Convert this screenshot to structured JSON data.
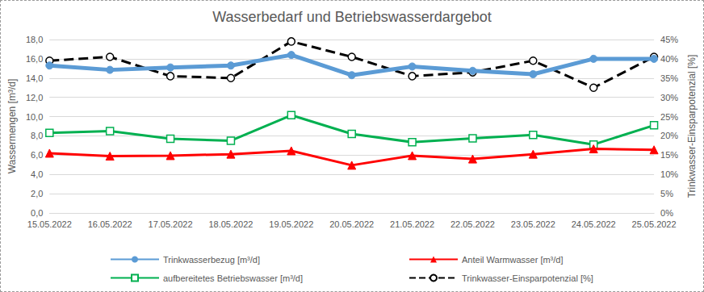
{
  "chart_data": {
    "type": "line",
    "title": "Wasserbedarf und Betriebswasserdargebot",
    "y_label": "Wassermengen [m³/d]",
    "y2_label": "Trinkwasser-Einsparpotenzial [%]",
    "categories": [
      "15.05.2022",
      "16.05.2022",
      "17.05.2022",
      "18.05.2022",
      "19.05.2022",
      "20.05.2022",
      "21.05.2022",
      "22.05.2022",
      "23.05.2022",
      "24.05.2022",
      "25.05.2022"
    ],
    "series": [
      {
        "name": "Trinkwasserbezug [m³/d]",
        "color": "#5b9bd5",
        "marker": "circle",
        "line_style": "solid",
        "values": [
          15.3,
          14.85,
          15.1,
          15.3,
          16.4,
          14.3,
          15.2,
          14.75,
          14.4,
          16.0,
          16.0
        ]
      },
      {
        "name": "Anteil Warmwasser [m³/d]",
        "color": "#ff0000",
        "marker": "triangle",
        "line_style": "solid",
        "values": [
          6.2,
          5.9,
          5.95,
          6.1,
          6.45,
          4.95,
          5.95,
          5.6,
          6.1,
          6.65,
          6.55
        ]
      },
      {
        "name": "aufbereitetes Betriebswasser [m³/d]",
        "color": "#00b050",
        "marker": "square-open",
        "line_style": "solid",
        "values": [
          8.3,
          8.5,
          7.7,
          7.5,
          10.15,
          8.2,
          7.35,
          7.75,
          8.1,
          7.1,
          9.1
        ]
      },
      {
        "name": "Trinkwasser-Einsparpotenzial [%]",
        "color": "#000000",
        "marker": "circle-open",
        "line_style": "dashed",
        "axis": "y2",
        "values": [
          39.5,
          40.5,
          35.5,
          35,
          44.5,
          40.5,
          35.5,
          36.5,
          39.5,
          32.5,
          40.5
        ]
      }
    ],
    "ylim": [
      0,
      18
    ],
    "yticks": [
      {
        "value": 0,
        "label": "0,0"
      },
      {
        "value": 2,
        "label": "2,0"
      },
      {
        "value": 4,
        "label": "4,0"
      },
      {
        "value": 6,
        "label": "6,0"
      },
      {
        "value": 8,
        "label": "8,0"
      },
      {
        "value": 10,
        "label": "10,0"
      },
      {
        "value": 12,
        "label": "12,0"
      },
      {
        "value": 14,
        "label": "14,0"
      },
      {
        "value": 16,
        "label": "16,0"
      },
      {
        "value": 18,
        "label": "18,0"
      }
    ],
    "y2lim": [
      0,
      45
    ],
    "y2ticks": [
      {
        "value": 0,
        "label": "0%"
      },
      {
        "value": 5,
        "label": "5%"
      },
      {
        "value": 10,
        "label": "10%"
      },
      {
        "value": 15,
        "label": "15%"
      },
      {
        "value": 20,
        "label": "20%"
      },
      {
        "value": 25,
        "label": "25%"
      },
      {
        "value": 30,
        "label": "30%"
      },
      {
        "value": 35,
        "label": "35%"
      },
      {
        "value": 40,
        "label": "40%"
      },
      {
        "value": 45,
        "label": "45%"
      }
    ],
    "grid": true,
    "legend": "bottom"
  }
}
